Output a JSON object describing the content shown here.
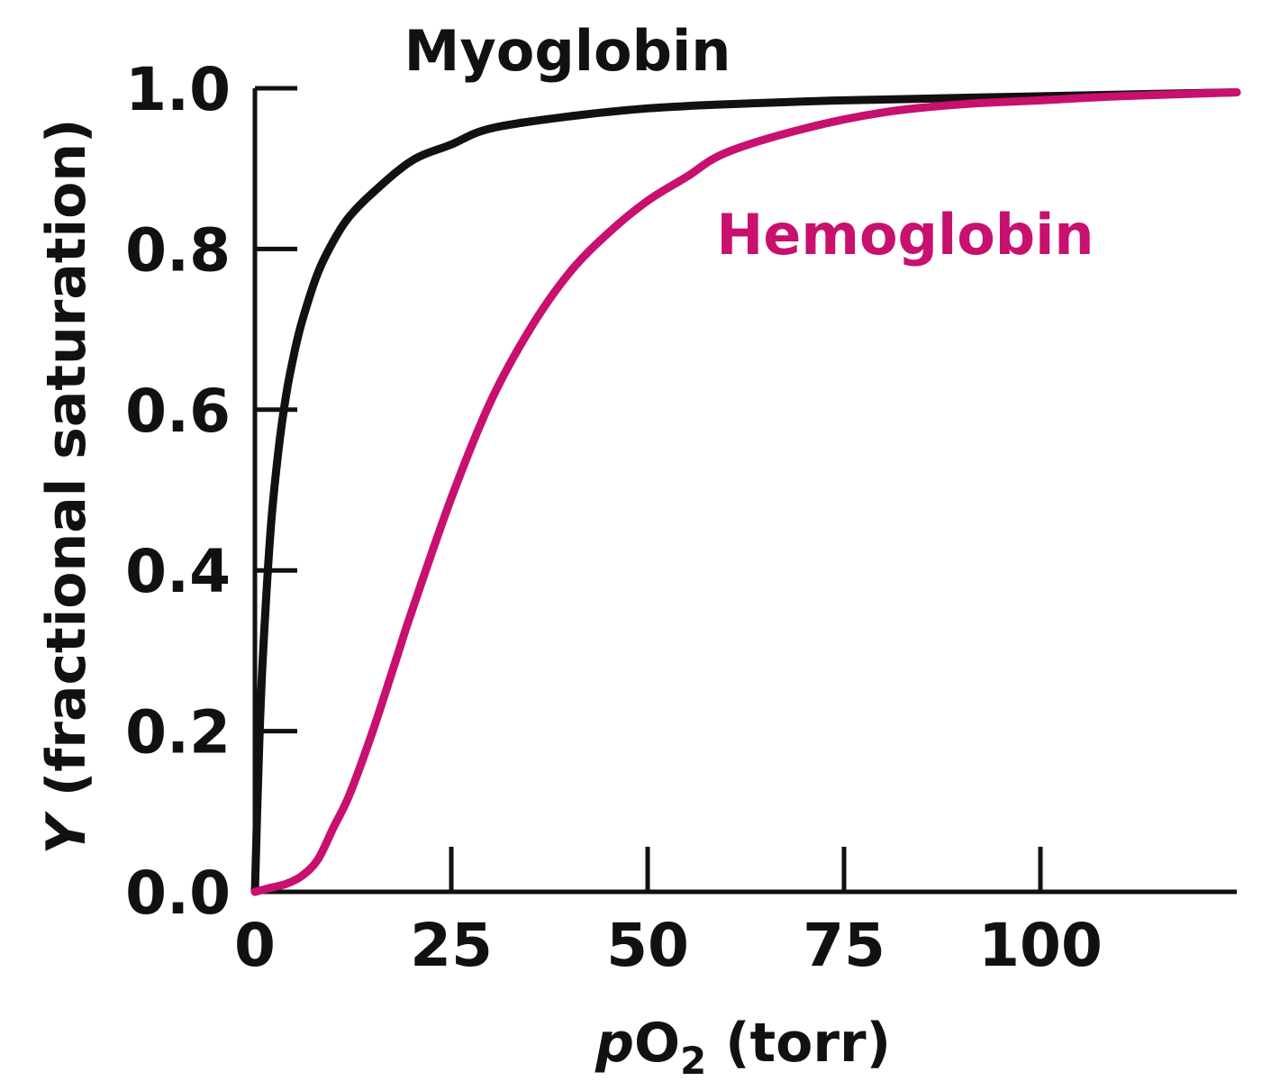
{
  "chart_data": {
    "type": "line",
    "title": "",
    "xlabel": {
      "italic": "p",
      "main": "O",
      "subscript": "2",
      "rest": " (torr)"
    },
    "ylabel": {
      "italic": "Y",
      "rest": " (fractional saturation)"
    },
    "xlim": [
      0,
      125
    ],
    "ylim": [
      0,
      1.0
    ],
    "x_ticks": [
      0,
      25,
      50,
      75,
      100
    ],
    "x_tick_labels": [
      "0",
      "25",
      "50",
      "75",
      "100"
    ],
    "y_ticks": [
      0,
      0.2,
      0.4,
      0.6,
      0.8,
      1.0
    ],
    "y_tick_labels": [
      "0.0",
      "0.2",
      "0.4",
      "0.6",
      "0.8",
      "1.0"
    ],
    "grid": false,
    "series": [
      {
        "name": "Myoglobin",
        "color": "#111111",
        "label_color": "#111111",
        "x": [
          0,
          0.5,
          1,
          2,
          3,
          4,
          5,
          6,
          8,
          10,
          12,
          15,
          20,
          25,
          30,
          40,
          50,
          60,
          75,
          100,
          125
        ],
        "y": [
          0,
          0.17,
          0.29,
          0.45,
          0.55,
          0.62,
          0.67,
          0.71,
          0.77,
          0.81,
          0.84,
          0.87,
          0.91,
          0.93,
          0.95,
          0.965,
          0.975,
          0.98,
          0.985,
          0.99,
          0.995
        ]
      },
      {
        "name": "Hemoglobin",
        "color": "#c8106e",
        "label_color": "#c8106e",
        "x": [
          0,
          2,
          4,
          6,
          8,
          10,
          12,
          15,
          18,
          20,
          25,
          30,
          35,
          40,
          45,
          50,
          55,
          60,
          70,
          80,
          90,
          100,
          110,
          125
        ],
        "y": [
          0,
          0.005,
          0.01,
          0.02,
          0.04,
          0.08,
          0.12,
          0.2,
          0.29,
          0.35,
          0.49,
          0.61,
          0.7,
          0.77,
          0.82,
          0.86,
          0.89,
          0.92,
          0.95,
          0.97,
          0.98,
          0.985,
          0.99,
          0.995
        ]
      }
    ]
  }
}
